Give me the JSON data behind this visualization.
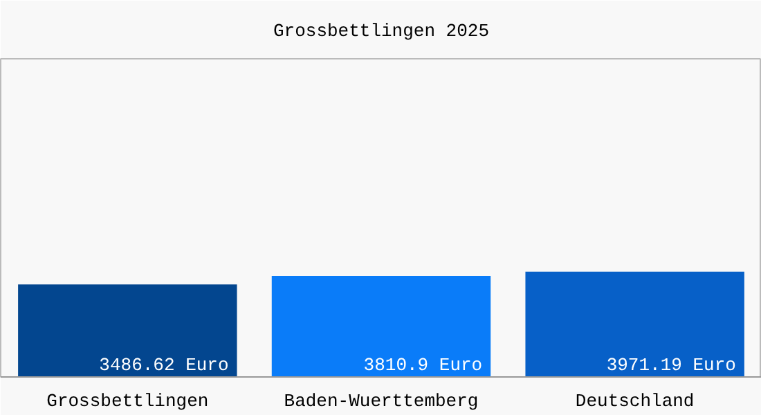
{
  "chart_data": {
    "type": "bar",
    "title": "Grossbettlingen 2025",
    "categories": [
      "Grossbettlingen",
      "Baden-Wuerttemberg",
      "Deutschland"
    ],
    "values": [
      3486.62,
      3810.9,
      3971.19
    ],
    "colors": [
      "#03468f",
      "#0a7cf9",
      "#0760c8"
    ],
    "value_labels": [
      "3486.62 Euro",
      "3810.9 Euro",
      "3971.19 Euro"
    ],
    "ylim": [
      0,
      12000
    ],
    "grid": false
  }
}
